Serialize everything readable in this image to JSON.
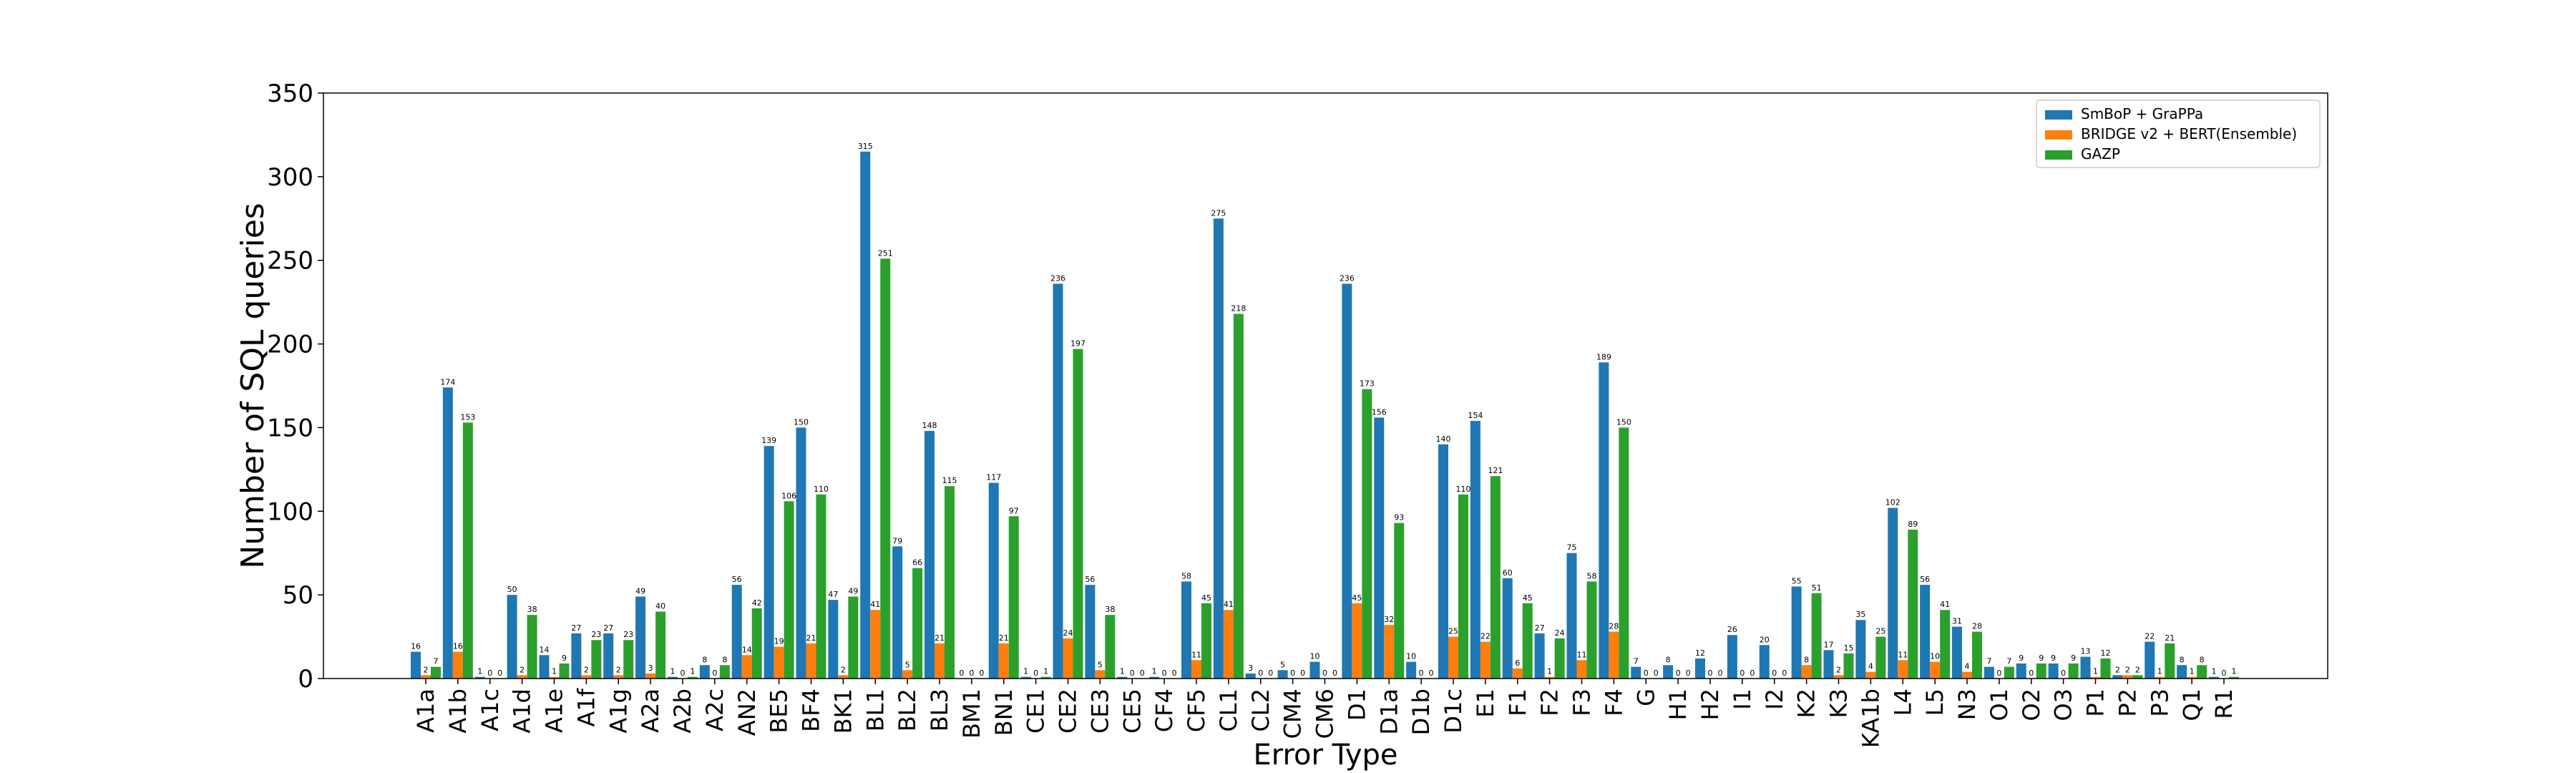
{
  "chart_data": {
    "type": "bar",
    "xlabel": "Error Type",
    "ylabel": "Number of SQL queries",
    "ylim": [
      0,
      350
    ],
    "yticks": [
      0,
      50,
      100,
      150,
      200,
      250,
      300,
      350
    ],
    "grid": false,
    "legend_position": "top-right",
    "categories": [
      "A1a",
      "A1b",
      "A1c",
      "A1d",
      "A1e",
      "A1f",
      "A1g",
      "A2a",
      "A2b",
      "A2c",
      "AN2",
      "BE5",
      "BF4",
      "BK1",
      "BL1",
      "BL2",
      "BL3",
      "BM1",
      "BN1",
      "CE1",
      "CE2",
      "CE3",
      "CE5",
      "CF4",
      "CF5",
      "CL1",
      "CL2",
      "CM4",
      "CM6",
      "D1",
      "D1a",
      "D1b",
      "D1c",
      "E1",
      "F1",
      "F2",
      "F3",
      "F4",
      "G",
      "H1",
      "H2",
      "I1",
      "I2",
      "K2",
      "K3",
      "KA1b",
      "L4",
      "L5",
      "N3",
      "O1",
      "O2",
      "O3",
      "P1",
      "P2",
      "P3",
      "Q1",
      "R1"
    ],
    "series": [
      {
        "name": "SmBoP + GraPPa",
        "color": "#1f77b4",
        "values": [
          16,
          174,
          1,
          50,
          14,
          27,
          27,
          49,
          1,
          8,
          56,
          139,
          150,
          47,
          315,
          79,
          148,
          0,
          117,
          1,
          236,
          56,
          1,
          1,
          58,
          275,
          3,
          5,
          10,
          236,
          156,
          10,
          140,
          154,
          60,
          27,
          75,
          189,
          7,
          8,
          12,
          26,
          20,
          55,
          17,
          35,
          102,
          56,
          31,
          7,
          9,
          9,
          13,
          2,
          22,
          8,
          1
        ]
      },
      {
        "name": "BRIDGE v2 + BERT(Ensemble)",
        "color": "#ff7f0e",
        "values": [
          2,
          16,
          0,
          2,
          1,
          2,
          2,
          3,
          0,
          0,
          14,
          19,
          21,
          2,
          41,
          5,
          21,
          0,
          21,
          0,
          24,
          5,
          0,
          0,
          11,
          41,
          0,
          0,
          0,
          45,
          32,
          0,
          25,
          22,
          6,
          1,
          11,
          28,
          0,
          0,
          0,
          0,
          0,
          8,
          2,
          4,
          11,
          10,
          4,
          0,
          0,
          0,
          1,
          2,
          1,
          1,
          0
        ]
      },
      {
        "name": "GAZP",
        "color": "#2ca02c",
        "values": [
          7,
          153,
          0,
          38,
          9,
          23,
          23,
          40,
          1,
          8,
          42,
          106,
          110,
          49,
          251,
          66,
          115,
          0,
          97,
          1,
          197,
          38,
          0,
          0,
          45,
          218,
          0,
          0,
          0,
          173,
          93,
          0,
          110,
          121,
          45,
          24,
          58,
          150,
          0,
          0,
          0,
          0,
          0,
          51,
          15,
          25,
          89,
          41,
          28,
          7,
          9,
          9,
          12,
          2,
          21,
          8,
          1
        ]
      }
    ]
  }
}
